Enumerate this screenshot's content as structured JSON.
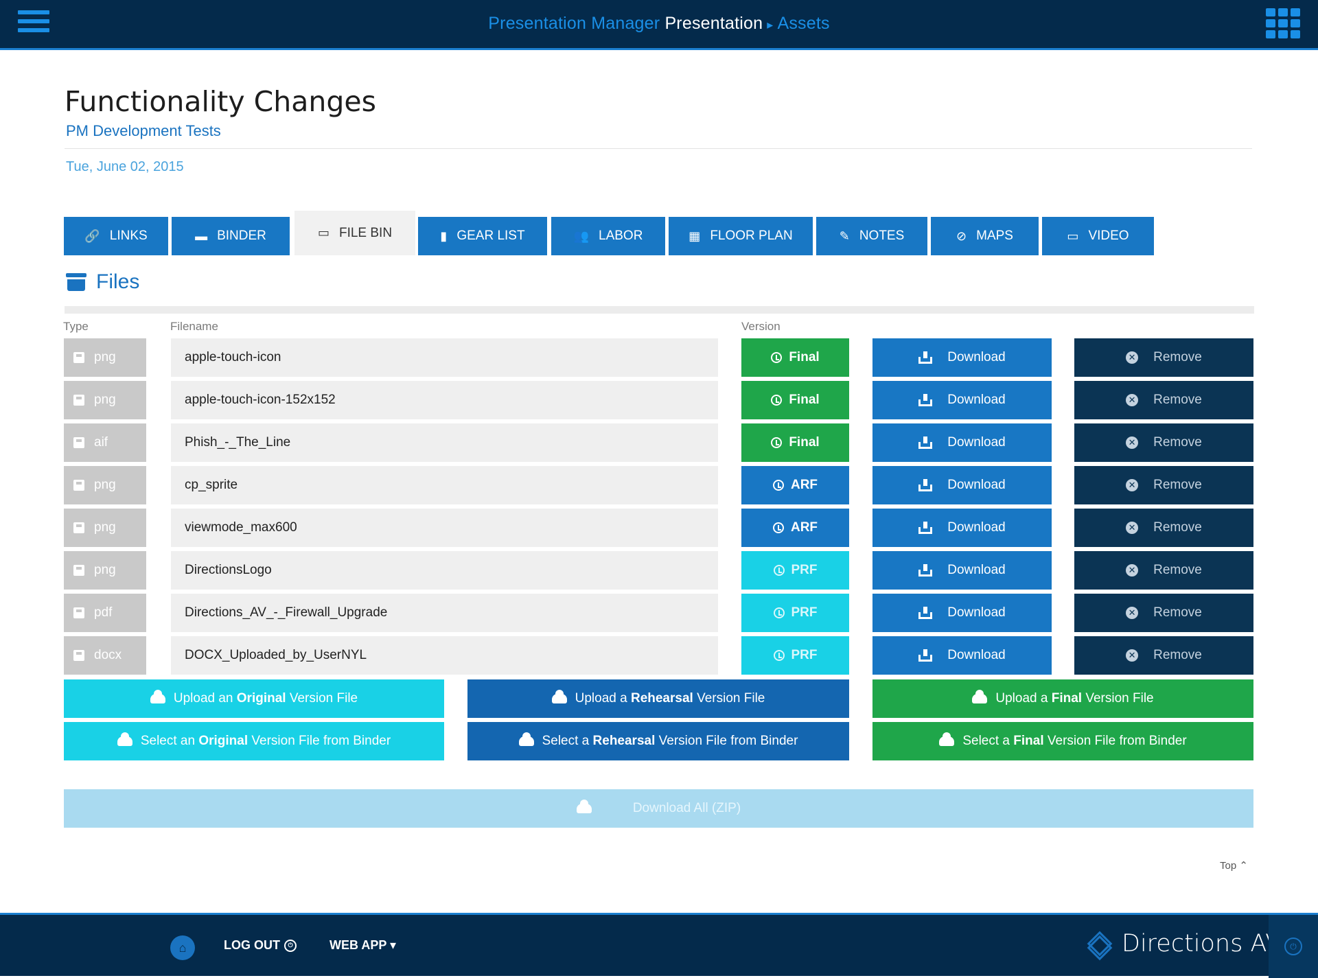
{
  "header": {
    "app_name": "Presentation Manager",
    "current": "Presentation",
    "separator": "▸",
    "section": "Assets"
  },
  "page": {
    "title": "Functionality Changes",
    "subtitle": "PM Development Tests",
    "date": "Tue, June 02, 2015"
  },
  "tabs": [
    {
      "label": "LINKS",
      "icon": "🔗"
    },
    {
      "label": "BINDER",
      "icon": "▬"
    },
    {
      "label": "FILE BIN",
      "icon": "▭"
    },
    {
      "label": "GEAR LIST",
      "icon": "▮"
    },
    {
      "label": "LABOR",
      "icon": "👥"
    },
    {
      "label": "FLOOR PLAN",
      "icon": "▦"
    },
    {
      "label": "NOTES",
      "icon": "✎"
    },
    {
      "label": "MAPS",
      "icon": "⊘"
    },
    {
      "label": "VIDEO",
      "icon": "▭"
    }
  ],
  "files": {
    "heading": "Files",
    "columns": {
      "type": "Type",
      "filename": "Filename",
      "version": "Version"
    },
    "rows": [
      {
        "type": "png",
        "name": "apple-touch-icon",
        "version": "Final"
      },
      {
        "type": "png",
        "name": "apple-touch-icon-152x152",
        "version": "Final"
      },
      {
        "type": "aif",
        "name": "Phish_-_The_Line",
        "version": "Final"
      },
      {
        "type": "png",
        "name": "cp_sprite",
        "version": "ARF"
      },
      {
        "type": "png",
        "name": "viewmode_max600",
        "version": "ARF"
      },
      {
        "type": "png",
        "name": "DirectionsLogo",
        "version": "PRF"
      },
      {
        "type": "pdf",
        "name": "Directions_AV_-_Firewall_Upgrade",
        "version": "PRF"
      },
      {
        "type": "docx",
        "name": "DOCX_Uploaded_by_UserNYL",
        "version": "PRF"
      }
    ],
    "download_label": "Download",
    "remove_label": "Remove"
  },
  "uploads": {
    "upload_original": {
      "pre": "Upload an ",
      "bold": "Original",
      "post": " Version File"
    },
    "upload_rehearsal": {
      "pre": "Upload a ",
      "bold": "Rehearsal",
      "post": " Version File"
    },
    "upload_final": {
      "pre": "Upload a ",
      "bold": "Final",
      "post": " Version File"
    },
    "select_original": {
      "pre": "Select an ",
      "bold": "Original",
      "post": " Version File from Binder"
    },
    "select_rehearsal": {
      "pre": "Select a ",
      "bold": "Rehearsal",
      "post": " Version File from Binder"
    },
    "select_final": {
      "pre": "Select a ",
      "bold": "Final",
      "post": " Version File from Binder"
    }
  },
  "download_all": "Download All (ZIP)",
  "top_link": "Top",
  "footer": {
    "logout": "LOG OUT",
    "webapp": "WEB APP",
    "webapp_caret": "▾",
    "brand": "Directions AV"
  },
  "colors": {
    "navy": "#042a4b",
    "blue": "#1877c4",
    "green": "#1fa64a",
    "cyan": "#19d1e6",
    "dark": "#0b3454"
  }
}
